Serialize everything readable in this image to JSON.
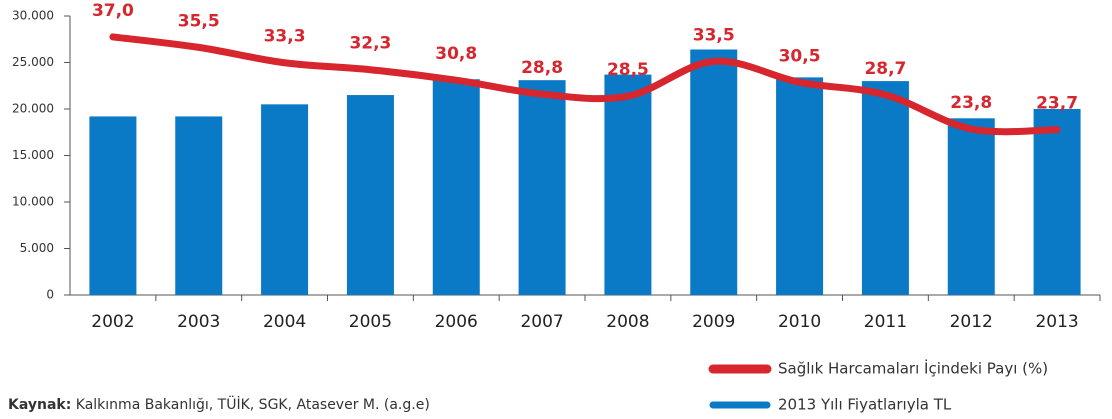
{
  "chart_data": {
    "type": "bar-line",
    "categories": [
      "2002",
      "2003",
      "2004",
      "2005",
      "2006",
      "2007",
      "2008",
      "2009",
      "2010",
      "2011",
      "2012",
      "2013"
    ],
    "series": [
      {
        "name": "2013 Yılı Fiyatlarıyla TL",
        "type": "bar",
        "color": "#0a7ac6",
        "values": [
          19200,
          19200,
          20500,
          21500,
          23200,
          23100,
          23700,
          26400,
          23400,
          23000,
          19000,
          20000
        ]
      },
      {
        "name": "Sağlık Harcamaları İçindeki Payı (%)",
        "type": "line",
        "axis": "y2",
        "color": "#d7262e",
        "values": [
          37.0,
          35.5,
          33.3,
          32.3,
          30.8,
          28.8,
          28.5,
          33.5,
          30.5,
          28.7,
          23.8,
          23.7
        ],
        "value_labels": [
          "37,0",
          "35,5",
          "33,3",
          "32,3",
          "30,8",
          "28,8",
          "28,5",
          "33,5",
          "30,5",
          "28,7",
          "23,8",
          "23,7"
        ]
      }
    ],
    "ylim": [
      0,
      30000
    ],
    "yticks": [
      0,
      {
        "value": 5000,
        "label": "5.000"
      },
      {
        "value": 10000,
        "label": "10.000"
      },
      {
        "value": 15000,
        "label": "15.000"
      },
      {
        "value": 20000,
        "label": "20.000"
      },
      {
        "value": 25000,
        "label": "25.000"
      },
      {
        "value": 30000,
        "label": "30.000"
      }
    ],
    "y2lim": [
      0,
      40
    ],
    "source": {
      "label": "Kaynak:",
      "text": "Kalkınma Bakanlığı, TÜİK, SGK,  Atasever M. (a.g.e)"
    }
  }
}
